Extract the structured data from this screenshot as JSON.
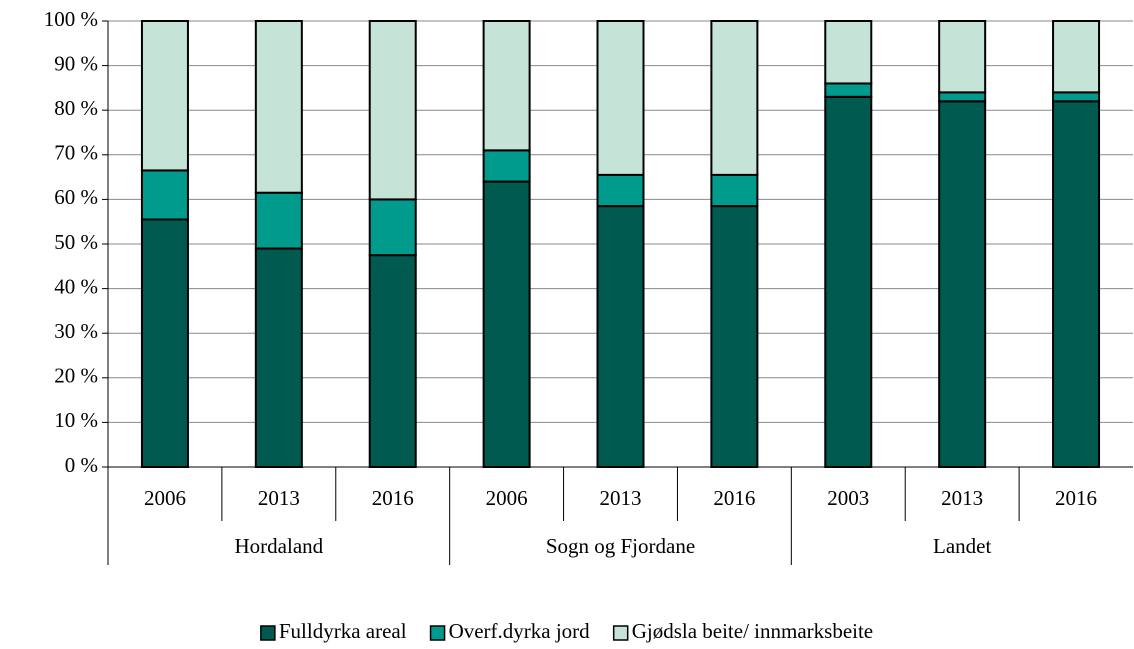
{
  "chart_data": {
    "type": "stacked_bar",
    "groups": [
      {
        "name": "Hordaland",
        "categories": [
          "2006",
          "2013",
          "2016"
        ]
      },
      {
        "name": "Sogn og Fjordane",
        "categories": [
          "2006",
          "2013",
          "2016"
        ]
      },
      {
        "name": "Landet",
        "categories": [
          "2003",
          "2013",
          "2016"
        ]
      }
    ],
    "series": [
      {
        "name": "Fulldyrka areal",
        "color": "#005a50",
        "values": [
          55.5,
          49,
          47.5,
          64,
          58.5,
          58.5,
          83,
          82,
          82
        ]
      },
      {
        "name": "Overf.dyrka jord",
        "color": "#009b8d",
        "values": [
          11,
          12.5,
          12.5,
          7,
          7,
          7,
          3,
          2,
          2
        ]
      },
      {
        "name": "Gjødsla beite/ innmarksbeite",
        "color": "#c6e3d8",
        "values": [
          33.5,
          38.5,
          40,
          29,
          34.5,
          34.5,
          14,
          16,
          16
        ]
      }
    ],
    "ylim": [
      0,
      100
    ],
    "yticks": [
      {
        "value": 0,
        "label": "0 %"
      },
      {
        "value": 10,
        "label": "10 %"
      },
      {
        "value": 20,
        "label": "20 %"
      },
      {
        "value": 30,
        "label": "30 %"
      },
      {
        "value": 40,
        "label": "40 %"
      },
      {
        "value": 50,
        "label": "50 %"
      },
      {
        "value": 60,
        "label": "60 %"
      },
      {
        "value": 70,
        "label": "70 %"
      },
      {
        "value": 80,
        "label": "80 %"
      },
      {
        "value": 90,
        "label": "90 %"
      },
      {
        "value": 100,
        "label": "100 %"
      }
    ],
    "grid": true,
    "legend": "bottom"
  }
}
